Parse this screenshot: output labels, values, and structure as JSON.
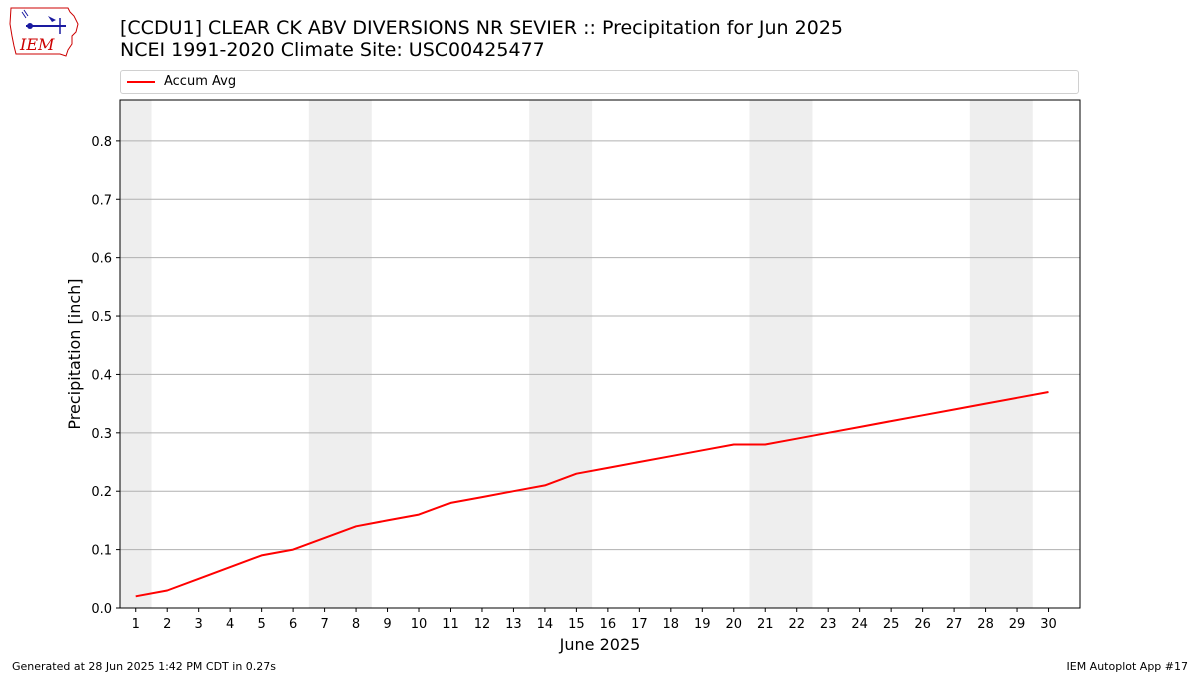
{
  "header": {
    "title_line1": "[CCDU1] CLEAR CK ABV DIVERSIONS NR SEVIER :: Precipitation for Jun 2025",
    "title_line2": "NCEI 1991-2020 Climate Site: USC00425477"
  },
  "logo": {
    "text": "IEM",
    "color": "#cc0000",
    "accent": "#1a1aa0"
  },
  "legend": {
    "label": "Accum Avg",
    "placement": "top",
    "color": "#ff0000"
  },
  "chart_data": {
    "type": "line",
    "xlabel": "June 2025",
    "ylabel": "Precipitation [inch]",
    "x": [
      1,
      2,
      3,
      4,
      5,
      6,
      7,
      8,
      9,
      10,
      11,
      12,
      13,
      14,
      15,
      16,
      17,
      18,
      19,
      20,
      21,
      22,
      23,
      24,
      25,
      26,
      27,
      28,
      29,
      30
    ],
    "xlim": [
      0.5,
      31
    ],
    "ylim": [
      0.0,
      0.87
    ],
    "yticks": [
      0.0,
      0.1,
      0.2,
      0.3,
      0.4,
      0.5,
      0.6,
      0.7,
      0.8
    ],
    "ytick_labels": [
      "0.0",
      "0.1",
      "0.2",
      "0.3",
      "0.4",
      "0.5",
      "0.6",
      "0.7",
      "0.8"
    ],
    "grid": "horizontal",
    "weekend_shading": [
      [
        0.5,
        1.5
      ],
      [
        6.5,
        8.5
      ],
      [
        13.5,
        15.5
      ],
      [
        20.5,
        22.5
      ],
      [
        27.5,
        29.5
      ]
    ],
    "shading_color": "#eeeeee",
    "series": [
      {
        "name": "Accum Avg",
        "color": "#ff0000",
        "values": [
          0.02,
          0.03,
          0.05,
          0.07,
          0.09,
          0.1,
          0.12,
          0.14,
          0.15,
          0.16,
          0.18,
          0.19,
          0.2,
          0.21,
          0.23,
          0.24,
          0.25,
          0.26,
          0.27,
          0.28,
          0.28,
          0.29,
          0.3,
          0.31,
          0.32,
          0.33,
          0.34,
          0.35,
          0.36,
          0.37
        ]
      }
    ]
  },
  "footer": {
    "left": "Generated at 28 Jun 2025 1:42 PM CDT in 0.27s",
    "right": "IEM Autoplot App #17"
  }
}
